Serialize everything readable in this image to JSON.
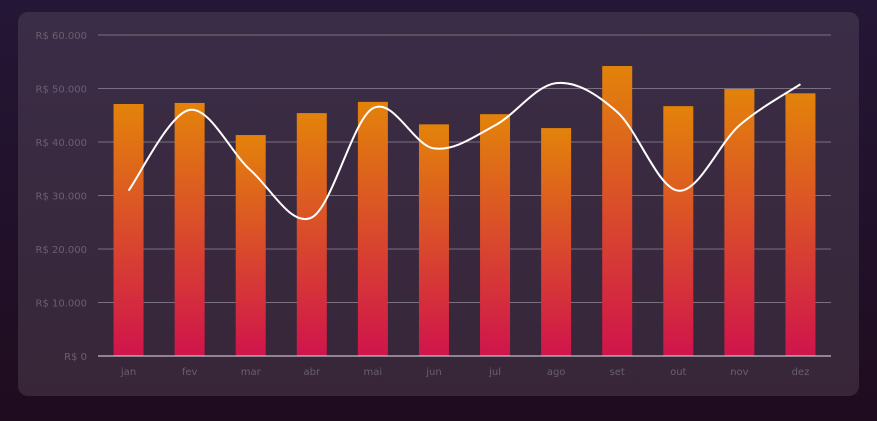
{
  "chart_data": {
    "type": "bar",
    "title": "",
    "xlabel": "",
    "ylabel": "",
    "ylim": [
      0,
      60000
    ],
    "grid": true,
    "legend": "none",
    "categories": [
      "jan",
      "fev",
      "mar",
      "abr",
      "mai",
      "jun",
      "jul",
      "ago",
      "set",
      "out",
      "nov",
      "dez"
    ],
    "y_ticks": [
      0,
      10000,
      20000,
      30000,
      40000,
      50000,
      60000
    ],
    "y_tick_labels": [
      "R$ 0",
      "R$ 10.000",
      "R$ 20.000",
      "R$ 30.000",
      "R$ 40.000",
      "R$ 50.000",
      "R$ 60.000"
    ],
    "series": [
      {
        "name": "bars",
        "type": "bar",
        "values": [
          47100,
          47300,
          41300,
          45400,
          47500,
          43300,
          45200,
          42600,
          54200,
          46700,
          49900,
          49100
        ]
      },
      {
        "name": "line",
        "type": "line",
        "values": [
          30900,
          46000,
          34700,
          25900,
          46300,
          38800,
          43100,
          51000,
          45600,
          30900,
          43100,
          50800
        ]
      }
    ],
    "colors": {
      "bar_top": "#e3830a",
      "bar_bottom": "#d0144c",
      "line": "#ffffff",
      "grid": "#7a7080",
      "axis": "#e8e0e8"
    }
  }
}
